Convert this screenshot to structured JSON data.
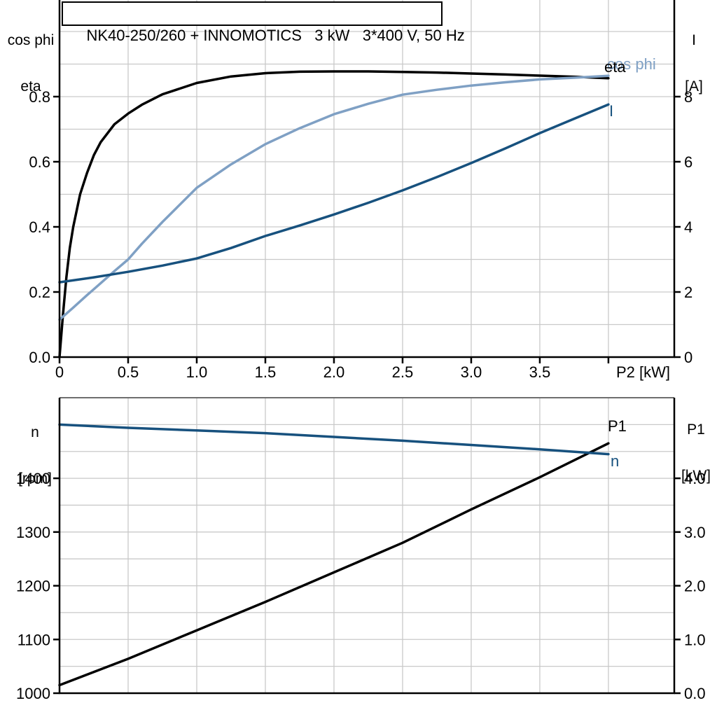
{
  "title_box": {
    "text": "NK40-250/260 + INNOMOTICS   3 kW   3*400 V, 50 Hz"
  },
  "colors": {
    "curve_black": "#000000",
    "curve_dark_blue": "#17517e",
    "curve_light_blue": "#7fa0c4",
    "grid": "#c9c9c9",
    "axis": "#000000",
    "frame_top": "#6e6e6e",
    "text": "#000000"
  },
  "chart_data": [
    {
      "type": "line",
      "title": "NK40-250/260 + INNOMOTICS   3 kW   3*400 V, 50 Hz",
      "x_axis": {
        "title": "P2 [kW]",
        "range": [
          0,
          4.48
        ],
        "grid_step": 0.5,
        "tick_values": [
          0,
          0.5,
          1,
          1.5,
          2,
          2.5,
          3,
          3.5,
          4
        ],
        "tick_labels": [
          "0",
          "0.5",
          "1.0",
          "1.5",
          "2.0",
          "2.5",
          "3.0",
          "3.5",
          ""
        ]
      },
      "y_left": {
        "title_lines": [
          "cos phi",
          "eta"
        ],
        "range": [
          0,
          1.1
        ],
        "grid_step": 0.1,
        "tick_values": [
          0,
          0.2,
          0.4,
          0.6,
          0.8
        ],
        "tick_labels": [
          "0.0",
          "0.2",
          "0.4",
          "0.6",
          "0.8"
        ]
      },
      "y_right": {
        "title_lines": [
          "I",
          "[A]"
        ],
        "range": [
          0,
          11
        ],
        "grid_step": 1,
        "tick_values": [
          0,
          2,
          4,
          6,
          8
        ],
        "tick_labels": [
          "0",
          "2",
          "4",
          "6",
          "8"
        ]
      },
      "legend_position": "end-of-curve",
      "series": [
        {
          "name": "eta",
          "label": "eta",
          "color": "curve_black",
          "axis": "left",
          "x": [
            0,
            0.025,
            0.05,
            0.075,
            0.1,
            0.15,
            0.2,
            0.25,
            0.3,
            0.4,
            0.5,
            0.6,
            0.75,
            1,
            1.25,
            1.5,
            1.75,
            2,
            2.25,
            2.5,
            2.75,
            3,
            3.25,
            3.5,
            3.75,
            4
          ],
          "y": [
            0,
            0.13,
            0.245,
            0.335,
            0.4,
            0.5,
            0.565,
            0.62,
            0.66,
            0.715,
            0.748,
            0.775,
            0.807,
            0.842,
            0.862,
            0.872,
            0.8765,
            0.8775,
            0.8775,
            0.876,
            0.874,
            0.871,
            0.868,
            0.8645,
            0.861,
            0.8565
          ]
        },
        {
          "name": "cos phi",
          "label": "cos phi",
          "color": "curve_light_blue",
          "axis": "left",
          "x": [
            0,
            0.1,
            0.2,
            0.3,
            0.4,
            0.5,
            0.6,
            0.75,
            1,
            1.25,
            1.5,
            1.75,
            2,
            2.25,
            2.5,
            2.75,
            3,
            3.25,
            3.5,
            3.75,
            4
          ],
          "y": [
            0.115,
            0.152,
            0.19,
            0.227,
            0.264,
            0.3,
            0.348,
            0.415,
            0.52,
            0.592,
            0.654,
            0.703,
            0.746,
            0.778,
            0.806,
            0.821,
            0.834,
            0.844,
            0.853,
            0.858,
            0.864
          ]
        },
        {
          "name": "I",
          "label": "I",
          "color": "curve_dark_blue",
          "axis": "right",
          "x": [
            0,
            0.25,
            0.5,
            0.75,
            1,
            1.25,
            1.5,
            1.75,
            2,
            2.25,
            2.5,
            2.75,
            3,
            3.25,
            3.5,
            3.75,
            4
          ],
          "y": [
            2.3,
            2.45,
            2.62,
            2.81,
            3.03,
            3.35,
            3.72,
            4.04,
            4.38,
            4.74,
            5.12,
            5.53,
            5.96,
            6.41,
            6.88,
            7.32,
            7.76
          ]
        }
      ]
    },
    {
      "type": "line",
      "title": "",
      "x_axis": {
        "title": "",
        "range": [
          0,
          4.48
        ],
        "grid_step": 0.5,
        "tick_values": [],
        "tick_labels": []
      },
      "y_left": {
        "title_lines": [
          "n",
          "[rpm]"
        ],
        "range": [
          1000,
          1550
        ],
        "grid_step": 50,
        "tick_values": [
          1000,
          1100,
          1200,
          1300,
          1400
        ],
        "tick_labels": [
          "1000",
          "1100",
          "1200",
          "1300",
          "1400"
        ]
      },
      "y_right": {
        "title_lines": [
          "P1",
          "[kW]"
        ],
        "range": [
          0,
          5.5
        ],
        "grid_step": 0.5,
        "tick_values": [
          0,
          1,
          2,
          3,
          4
        ],
        "tick_labels": [
          "0.0",
          "1.0",
          "2.0",
          "3.0",
          "4.0"
        ]
      },
      "legend_position": "end-of-curve",
      "series": [
        {
          "name": "P1",
          "label": "P1",
          "color": "curve_black",
          "axis": "right",
          "x": [
            0,
            0.5,
            1,
            1.5,
            2,
            2.5,
            3,
            3.5,
            4
          ],
          "y": [
            0.15,
            0.64,
            1.17,
            1.7,
            2.25,
            2.8,
            3.42,
            4.02,
            4.65
          ]
        },
        {
          "name": "n",
          "label": "n",
          "color": "curve_dark_blue",
          "axis": "left",
          "x": [
            0,
            0.5,
            1,
            1.5,
            2,
            2.5,
            3,
            3.5,
            4
          ],
          "y": [
            1500,
            1494,
            1489,
            1484,
            1477,
            1470,
            1462,
            1454,
            1445
          ]
        }
      ]
    }
  ]
}
